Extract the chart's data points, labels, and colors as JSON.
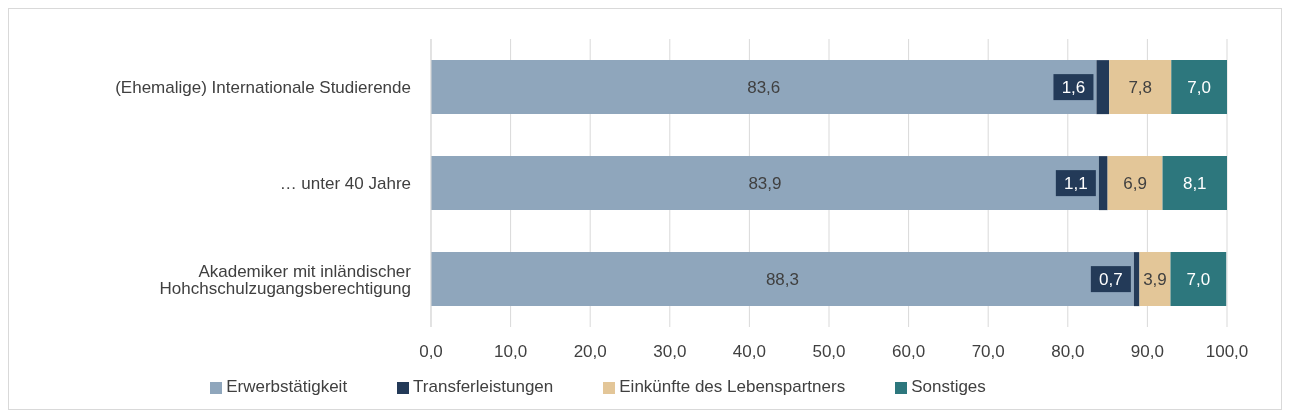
{
  "chart_data": {
    "type": "bar",
    "orientation": "horizontal",
    "stacked": true,
    "categories": [
      "(Ehemalige) Internationale Studierende",
      "… unter 40 Jahre",
      "Akademiker mit inländischer Hohchschulzugangsberechtigung"
    ],
    "series": [
      {
        "name": "Erwerbstätigkeit",
        "color": "#8fa6bc",
        "values": [
          83.6,
          83.9,
          88.3
        ],
        "value_labels": [
          "83,6",
          "83,9",
          "88,3"
        ]
      },
      {
        "name": "Transferleistungen",
        "color": "#233a58",
        "values": [
          1.6,
          1.1,
          0.7
        ],
        "value_labels": [
          "1,6",
          "1,1",
          "0,7"
        ]
      },
      {
        "name": "Einkünfte des Lebenspartners",
        "color": "#e3c698",
        "values": [
          7.8,
          6.9,
          3.9
        ],
        "value_labels": [
          "7,8",
          "6,9",
          "3,9"
        ]
      },
      {
        "name": "Sonstiges",
        "color": "#2d777d",
        "values": [
          7.0,
          8.1,
          7.0
        ],
        "value_labels": [
          "7,0",
          "8,1",
          "7,0"
        ]
      }
    ],
    "xlim": [
      0,
      100
    ],
    "xticks": [
      {
        "value": 0,
        "label": "0,0"
      },
      {
        "value": 10,
        "label": "10,0"
      },
      {
        "value": 20,
        "label": "20,0"
      },
      {
        "value": 30,
        "label": "30,0"
      },
      {
        "value": 40,
        "label": "40,0"
      },
      {
        "value": 50,
        "label": "50,0"
      },
      {
        "value": 60,
        "label": "60,0"
      },
      {
        "value": 70,
        "label": "70,0"
      },
      {
        "value": 80,
        "label": "80,0"
      },
      {
        "value": 90,
        "label": "90,0"
      },
      {
        "value": 100,
        "label": "100,0"
      }
    ],
    "grid": "x",
    "legend": "bottom"
  }
}
